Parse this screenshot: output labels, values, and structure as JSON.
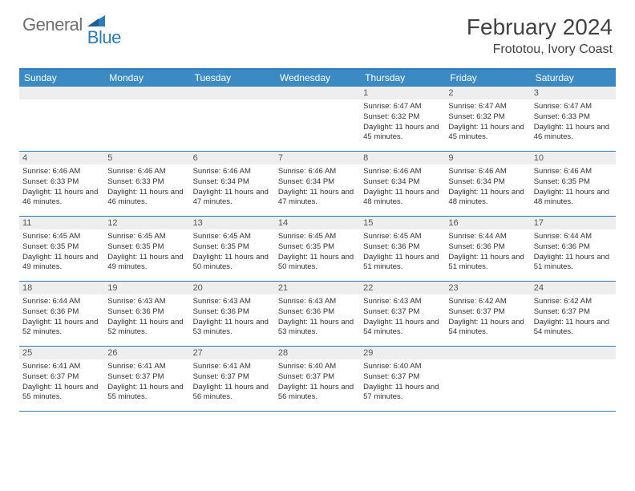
{
  "brand": {
    "part1": "General",
    "part2": "Blue"
  },
  "title": "February 2024",
  "location": "Frototou, Ivory Coast",
  "colors": {
    "header_bg": "#3b8ac4",
    "border": "#2b7bbf",
    "daynum_bg": "#eeeeee",
    "text": "#333333",
    "brand_gray": "#6e6e6e",
    "brand_blue": "#2b7bbf"
  },
  "day_names": [
    "Sunday",
    "Monday",
    "Tuesday",
    "Wednesday",
    "Thursday",
    "Friday",
    "Saturday"
  ],
  "weeks": [
    [
      null,
      null,
      null,
      null,
      {
        "d": "1",
        "sr": "6:47 AM",
        "ss": "6:32 PM",
        "dl": "11 hours and 45 minutes."
      },
      {
        "d": "2",
        "sr": "6:47 AM",
        "ss": "6:32 PM",
        "dl": "11 hours and 45 minutes."
      },
      {
        "d": "3",
        "sr": "6:47 AM",
        "ss": "6:33 PM",
        "dl": "11 hours and 46 minutes."
      }
    ],
    [
      {
        "d": "4",
        "sr": "6:46 AM",
        "ss": "6:33 PM",
        "dl": "11 hours and 46 minutes."
      },
      {
        "d": "5",
        "sr": "6:46 AM",
        "ss": "6:33 PM",
        "dl": "11 hours and 46 minutes."
      },
      {
        "d": "6",
        "sr": "6:46 AM",
        "ss": "6:34 PM",
        "dl": "11 hours and 47 minutes."
      },
      {
        "d": "7",
        "sr": "6:46 AM",
        "ss": "6:34 PM",
        "dl": "11 hours and 47 minutes."
      },
      {
        "d": "8",
        "sr": "6:46 AM",
        "ss": "6:34 PM",
        "dl": "11 hours and 48 minutes."
      },
      {
        "d": "9",
        "sr": "6:46 AM",
        "ss": "6:34 PM",
        "dl": "11 hours and 48 minutes."
      },
      {
        "d": "10",
        "sr": "6:46 AM",
        "ss": "6:35 PM",
        "dl": "11 hours and 48 minutes."
      }
    ],
    [
      {
        "d": "11",
        "sr": "6:45 AM",
        "ss": "6:35 PM",
        "dl": "11 hours and 49 minutes."
      },
      {
        "d": "12",
        "sr": "6:45 AM",
        "ss": "6:35 PM",
        "dl": "11 hours and 49 minutes."
      },
      {
        "d": "13",
        "sr": "6:45 AM",
        "ss": "6:35 PM",
        "dl": "11 hours and 50 minutes."
      },
      {
        "d": "14",
        "sr": "6:45 AM",
        "ss": "6:35 PM",
        "dl": "11 hours and 50 minutes."
      },
      {
        "d": "15",
        "sr": "6:45 AM",
        "ss": "6:36 PM",
        "dl": "11 hours and 51 minutes."
      },
      {
        "d": "16",
        "sr": "6:44 AM",
        "ss": "6:36 PM",
        "dl": "11 hours and 51 minutes."
      },
      {
        "d": "17",
        "sr": "6:44 AM",
        "ss": "6:36 PM",
        "dl": "11 hours and 51 minutes."
      }
    ],
    [
      {
        "d": "18",
        "sr": "6:44 AM",
        "ss": "6:36 PM",
        "dl": "11 hours and 52 minutes."
      },
      {
        "d": "19",
        "sr": "6:43 AM",
        "ss": "6:36 PM",
        "dl": "11 hours and 52 minutes."
      },
      {
        "d": "20",
        "sr": "6:43 AM",
        "ss": "6:36 PM",
        "dl": "11 hours and 53 minutes."
      },
      {
        "d": "21",
        "sr": "6:43 AM",
        "ss": "6:36 PM",
        "dl": "11 hours and 53 minutes."
      },
      {
        "d": "22",
        "sr": "6:43 AM",
        "ss": "6:37 PM",
        "dl": "11 hours and 54 minutes."
      },
      {
        "d": "23",
        "sr": "6:42 AM",
        "ss": "6:37 PM",
        "dl": "11 hours and 54 minutes."
      },
      {
        "d": "24",
        "sr": "6:42 AM",
        "ss": "6:37 PM",
        "dl": "11 hours and 54 minutes."
      }
    ],
    [
      {
        "d": "25",
        "sr": "6:41 AM",
        "ss": "6:37 PM",
        "dl": "11 hours and 55 minutes."
      },
      {
        "d": "26",
        "sr": "6:41 AM",
        "ss": "6:37 PM",
        "dl": "11 hours and 55 minutes."
      },
      {
        "d": "27",
        "sr": "6:41 AM",
        "ss": "6:37 PM",
        "dl": "11 hours and 56 minutes."
      },
      {
        "d": "28",
        "sr": "6:40 AM",
        "ss": "6:37 PM",
        "dl": "11 hours and 56 minutes."
      },
      {
        "d": "29",
        "sr": "6:40 AM",
        "ss": "6:37 PM",
        "dl": "11 hours and 57 minutes."
      },
      null,
      null
    ]
  ],
  "labels": {
    "sunrise": "Sunrise:",
    "sunset": "Sunset:",
    "daylight": "Daylight:"
  }
}
